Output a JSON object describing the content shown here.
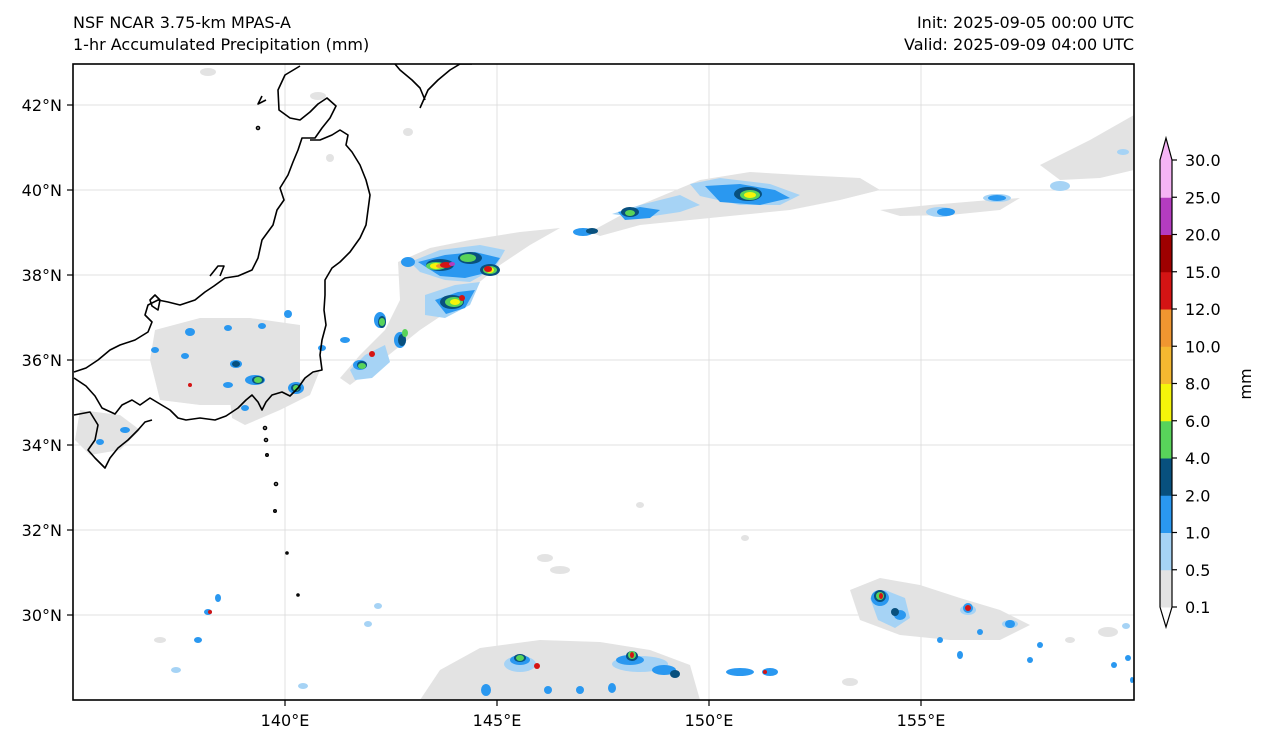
{
  "header": {
    "model": "NSF NCAR 3.75-km MPAS-A",
    "field": "1-hr Accumulated Precipitation (mm)",
    "init": "Init: 2025-09-05 00:00 UTC",
    "valid": "Valid: 2025-09-09 04:00 UTC"
  },
  "map": {
    "lon_labels": [
      "140°E",
      "145°E",
      "150°E",
      "155°E"
    ],
    "lat_labels": [
      "42°N",
      "40°N",
      "38°N",
      "36°N",
      "34°N",
      "32°N",
      "30°N"
    ],
    "gridlines": true
  },
  "colorbar": {
    "unit": "mm",
    "levels": [
      "0.1",
      "0.5",
      "1.0",
      "2.0",
      "4.0",
      "6.0",
      "8.0",
      "10.0",
      "12.0",
      "15.0",
      "20.0",
      "25.0",
      "30.0"
    ],
    "colors": [
      "#e3e3e3",
      "#a6d3f5",
      "#2a98f0",
      "#08507e",
      "#58d35a",
      "#f5f50a",
      "#f5b830",
      "#f09630",
      "#d41414",
      "#9e0000",
      "#b43cc0",
      "#f5b4f5"
    ],
    "extend": "both"
  }
}
